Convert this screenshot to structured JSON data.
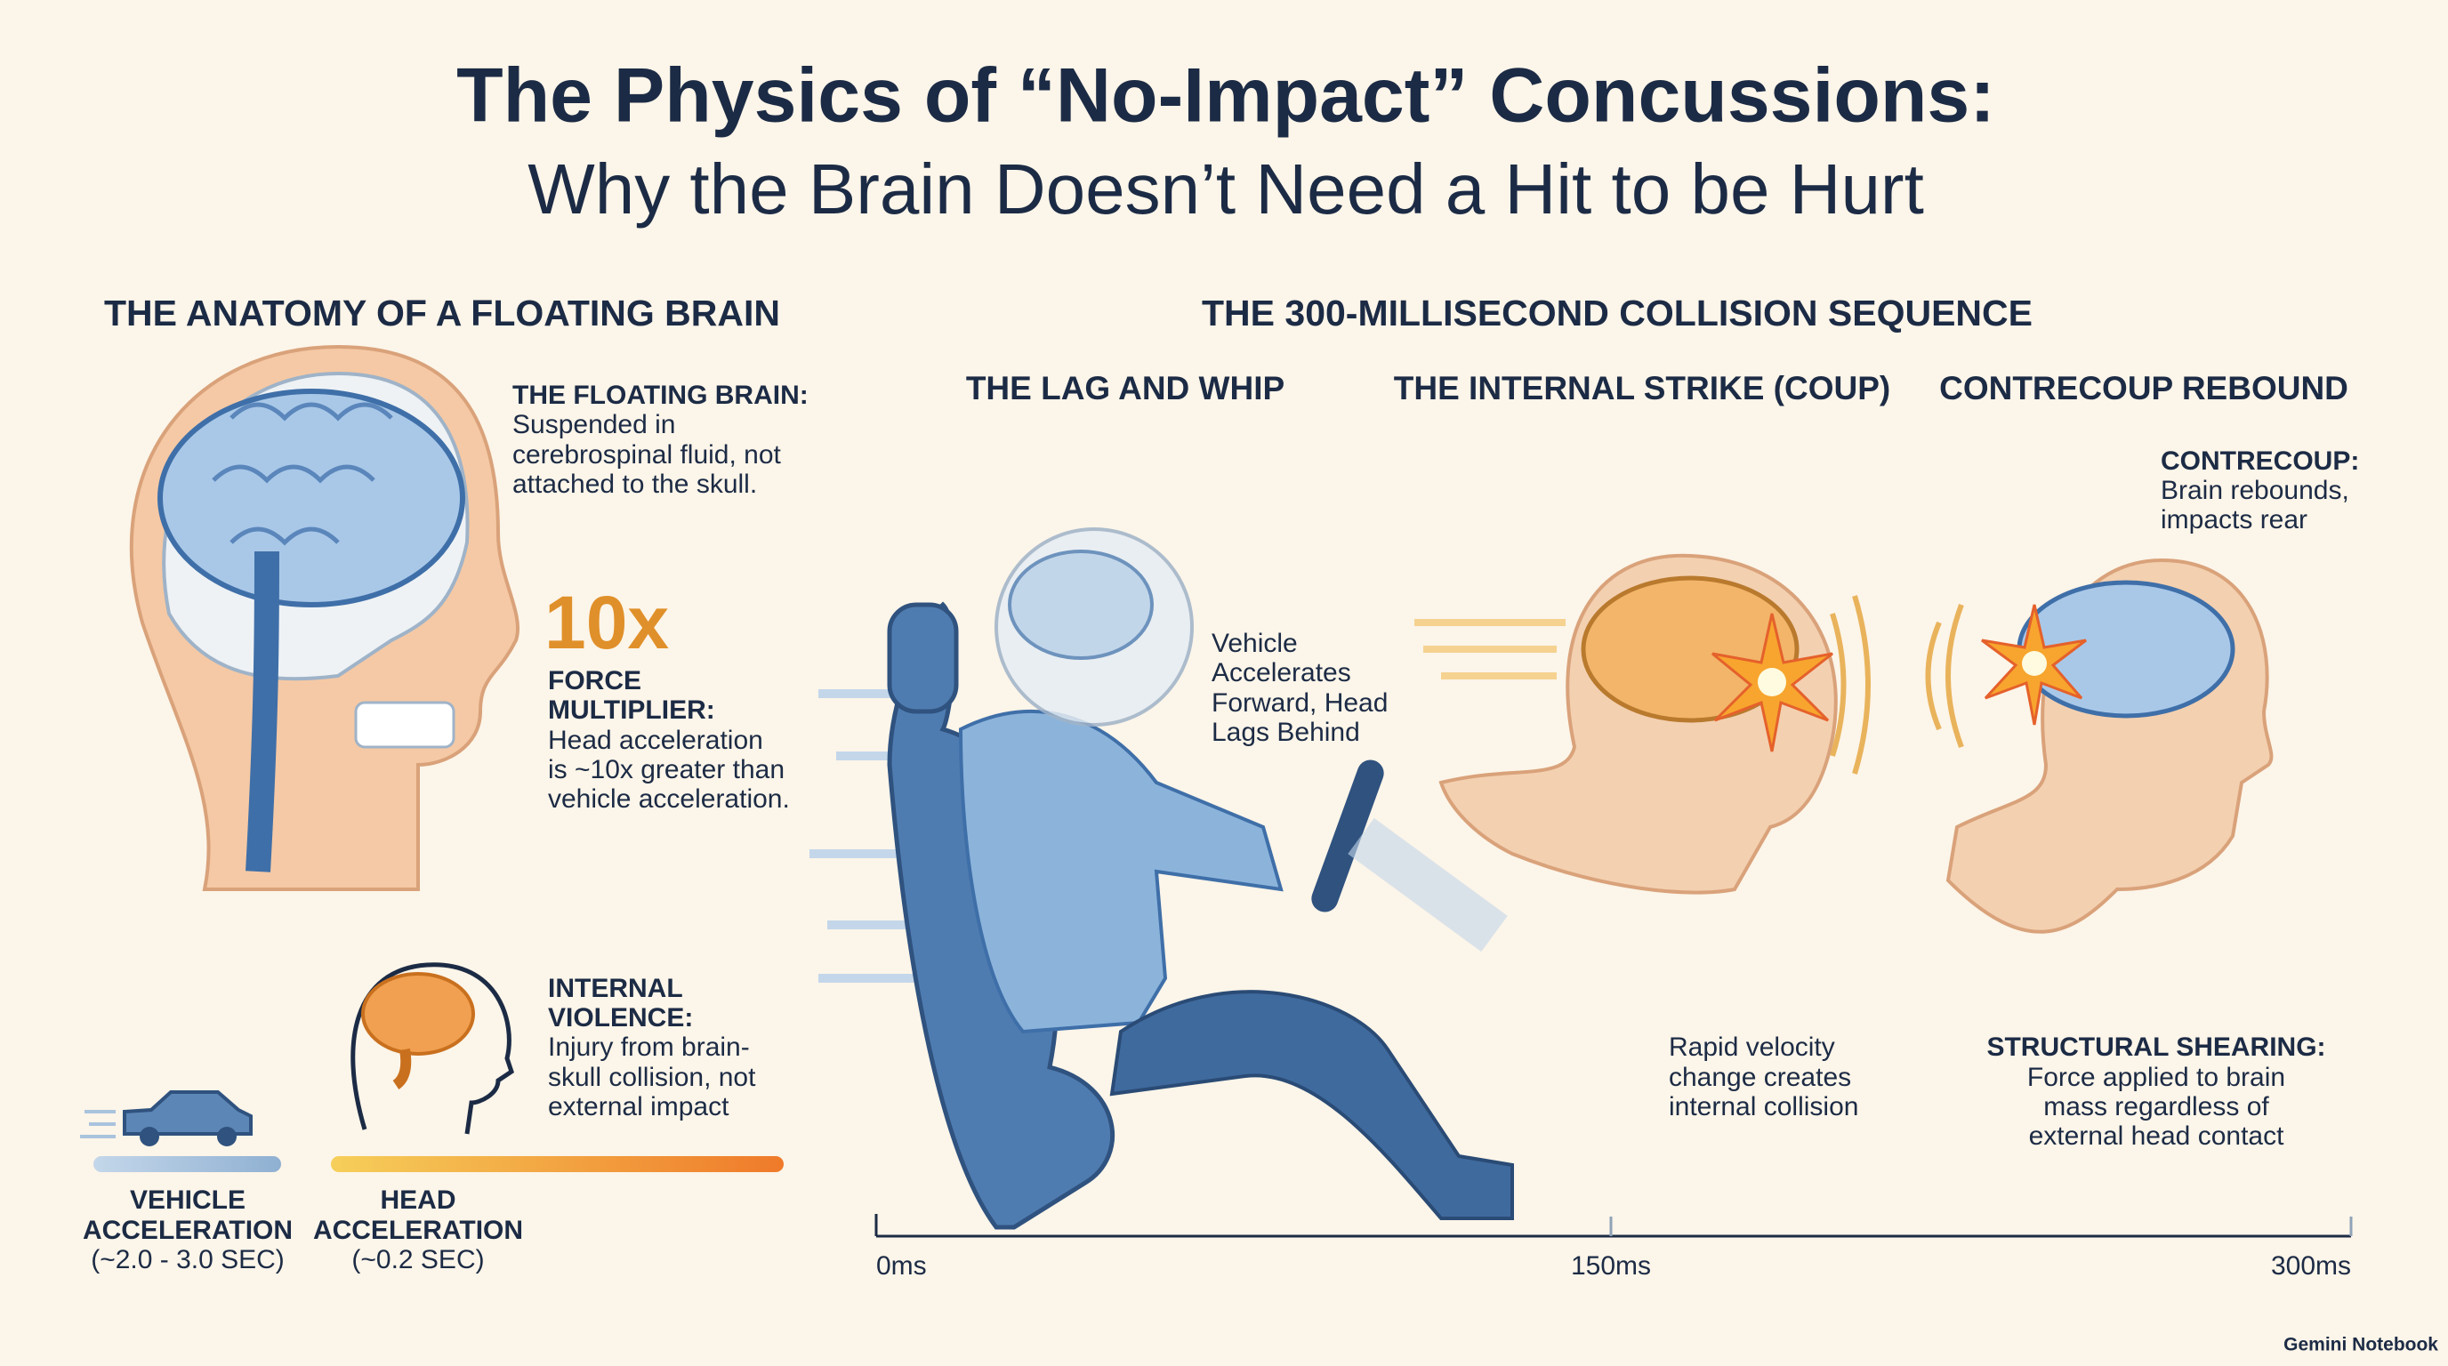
{
  "header": {
    "title": "The Physics of “No-Impact” Concussions:",
    "subtitle": "Why the Brain Doesn’t Need a Hit to be Hurt"
  },
  "anatomy": {
    "heading": "THE ANATOMY OF A FLOATING BRAIN",
    "floating_brain": {
      "label": "THE FLOATING BRAIN:",
      "lines": [
        "Suspended in",
        "cerebrospinal fluid, not",
        "attached to the skull."
      ]
    },
    "force_multiplier": {
      "figure": "10x",
      "label_lines": [
        "FORCE",
        "MULTIPLIER:"
      ],
      "lines": [
        "Head acceleration",
        "is ~10x greater than",
        "vehicle acceleration."
      ]
    },
    "internal_violence": {
      "label_lines": [
        "INTERNAL",
        "VIOLENCE:"
      ],
      "lines": [
        "Injury from brain-",
        "skull collision, not",
        "external impact"
      ]
    },
    "vehicle_acceleration": {
      "lines": [
        "VEHICLE",
        "ACCELERATION",
        "(~2.0 - 3.0 SEC)"
      ]
    },
    "head_acceleration": {
      "lines": [
        "HEAD",
        "ACCELERATION",
        "(~0.2 SEC)"
      ]
    }
  },
  "sequence": {
    "heading": "THE 300-MILLISECOND COLLISION SEQUENCE",
    "stages": [
      {
        "title": "THE LAG AND WHIP",
        "lines": [
          "Vehicle",
          "Accelerates",
          "Forward, Head",
          "Lags Behind"
        ]
      },
      {
        "title": "THE INTERNAL STRIKE (COUP)",
        "lines": [
          "Rapid velocity",
          "change creates",
          "internal collision"
        ]
      },
      {
        "title": "CONTRECOUP REBOUND",
        "label": "CONTRECOUP:",
        "lines": [
          "Brain rebounds,",
          "impacts rear"
        ],
        "footer_label": "STRUCTURAL SHEARING:",
        "footer_lines": [
          "Force applied to brain",
          "mass regardless of",
          "external head contact"
        ]
      }
    ],
    "timeline": [
      "0ms",
      "150ms",
      "300ms"
    ]
  },
  "footer": {
    "brand": "Gemini Notebook"
  }
}
